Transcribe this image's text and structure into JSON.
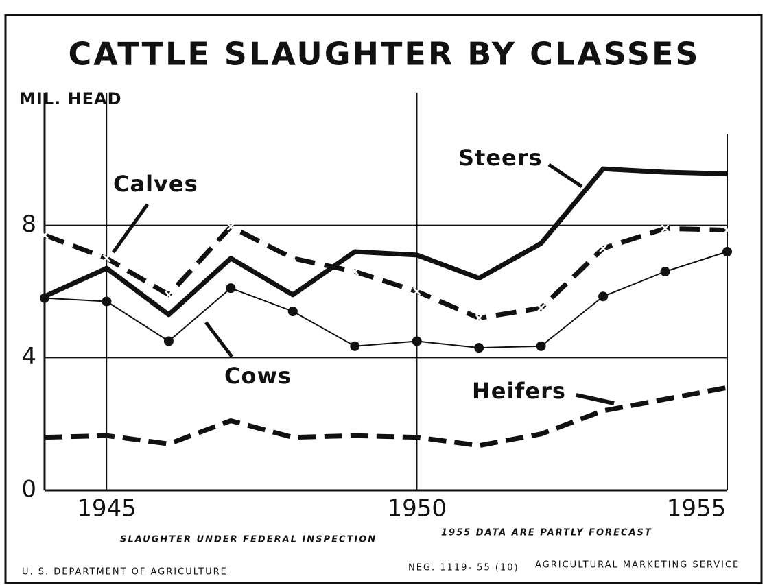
{
  "chart_data": {
    "type": "line",
    "title": "CATTLE SLAUGHTER BY CLASSES",
    "y_label": "MIL. HEAD",
    "x": [
      1944,
      1945,
      1946,
      1947,
      1948,
      1949,
      1950,
      1951,
      1952,
      1953,
      1954,
      1955
    ],
    "series": [
      {
        "name": "Steers",
        "color": "#111111",
        "line_style": "solid",
        "values": [
          5.85,
          6.7,
          5.3,
          7.0,
          5.9,
          7.2,
          7.1,
          6.4,
          7.45,
          9.7,
          9.6,
          9.55
        ]
      },
      {
        "name": "Calves",
        "color": "#111111",
        "line_style": "dash-x",
        "values": [
          7.7,
          7.0,
          5.9,
          7.95,
          7.0,
          6.6,
          6.0,
          5.2,
          5.5,
          7.3,
          7.9,
          7.85
        ]
      },
      {
        "name": "Cows",
        "color": "#111111",
        "line_style": "dotted",
        "values": [
          5.8,
          5.7,
          4.5,
          6.1,
          5.4,
          4.35,
          4.5,
          4.3,
          4.35,
          5.85,
          6.6,
          7.2
        ]
      },
      {
        "name": "Heifers",
        "color": "#111111",
        "line_style": "dashed",
        "values": [
          1.6,
          1.65,
          1.4,
          2.1,
          1.6,
          1.65,
          1.6,
          1.35,
          1.7,
          2.4,
          2.75,
          3.1
        ]
      }
    ],
    "xlim": [
      1944,
      1955
    ],
    "xticks": [
      1945,
      1950,
      1955
    ],
    "ylim": [
      0,
      12
    ],
    "yticks": [
      0,
      4,
      8
    ],
    "grid": true,
    "notes": [
      "SLAUGHTER UNDER FEDERAL INSPECTION",
      "1955 DATA ARE PARTLY FORECAST"
    ],
    "footer": {
      "left": "U. S. DEPARTMENT OF AGRICULTURE",
      "neg": "NEG. 1119- 55 (10)",
      "right": "AGRICULTURAL MARKETING SERVICE"
    }
  }
}
